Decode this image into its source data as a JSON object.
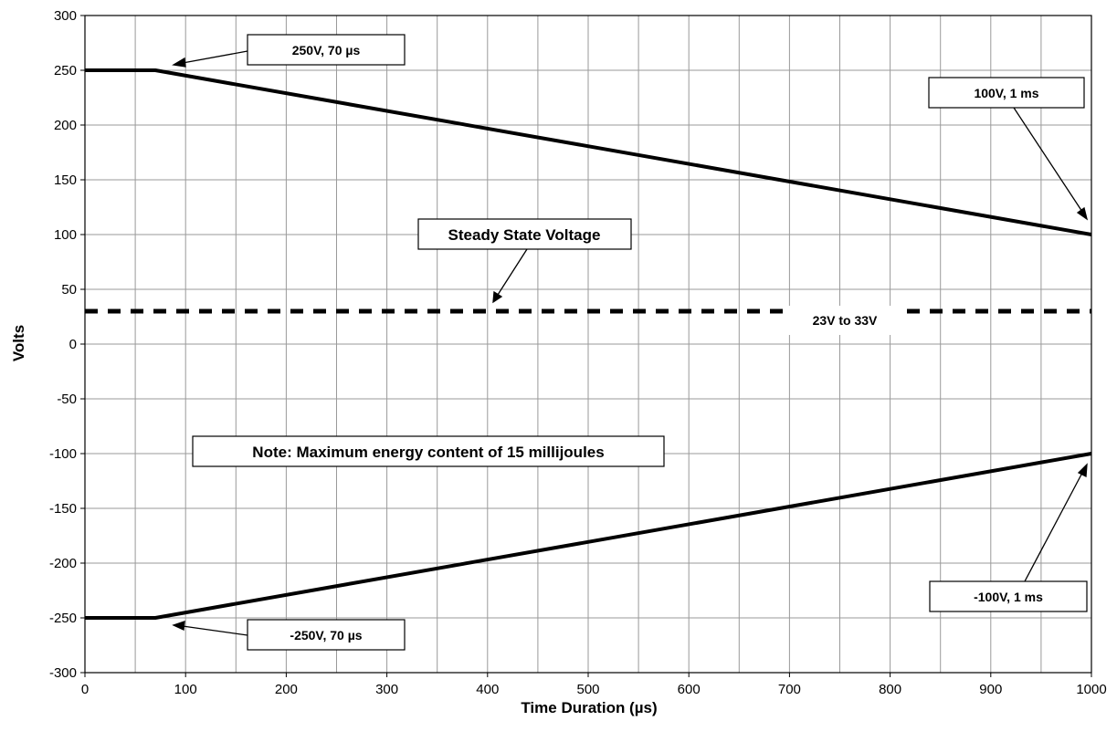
{
  "chart_data": {
    "type": "line",
    "xlabel": "Time Duration (µs)",
    "ylabel": "Volts",
    "xlim": [
      0,
      1000
    ],
    "ylim": [
      -300,
      300
    ],
    "x_ticks": [
      0,
      100,
      200,
      300,
      400,
      500,
      600,
      700,
      800,
      900,
      1000
    ],
    "y_ticks": [
      300,
      250,
      200,
      150,
      100,
      50,
      0,
      -50,
      -100,
      -150,
      -200,
      -250,
      -300
    ],
    "x_minor_step": 50,
    "grid": true,
    "series": [
      {
        "points": [
          [
            0,
            250
          ],
          [
            70,
            250
          ],
          [
            1000,
            100
          ]
        ],
        "style": "solid"
      },
      {
        "points": [
          [
            0,
            -250
          ],
          [
            70,
            -250
          ],
          [
            1000,
            -100
          ]
        ],
        "style": "solid"
      },
      {
        "points": [
          [
            0,
            30
          ],
          [
            1000,
            30
          ]
        ],
        "style": "dashed"
      }
    ],
    "annotations": [
      {
        "text": "250V, 70 µs",
        "target": [
          70,
          250
        ]
      },
      {
        "text": "100V, 1 ms",
        "target": [
          1000,
          100
        ]
      },
      {
        "text": "Steady State Voltage",
        "target": [
          410,
          36
        ]
      },
      {
        "text": "23V to 33V"
      },
      {
        "text": "Note: Maximum energy content of 15 millijoules"
      },
      {
        "text": "-100V, 1 ms",
        "target": [
          1000,
          -110
        ]
      },
      {
        "text": "-250V, 70 µs",
        "target": [
          85,
          -257
        ]
      }
    ]
  }
}
